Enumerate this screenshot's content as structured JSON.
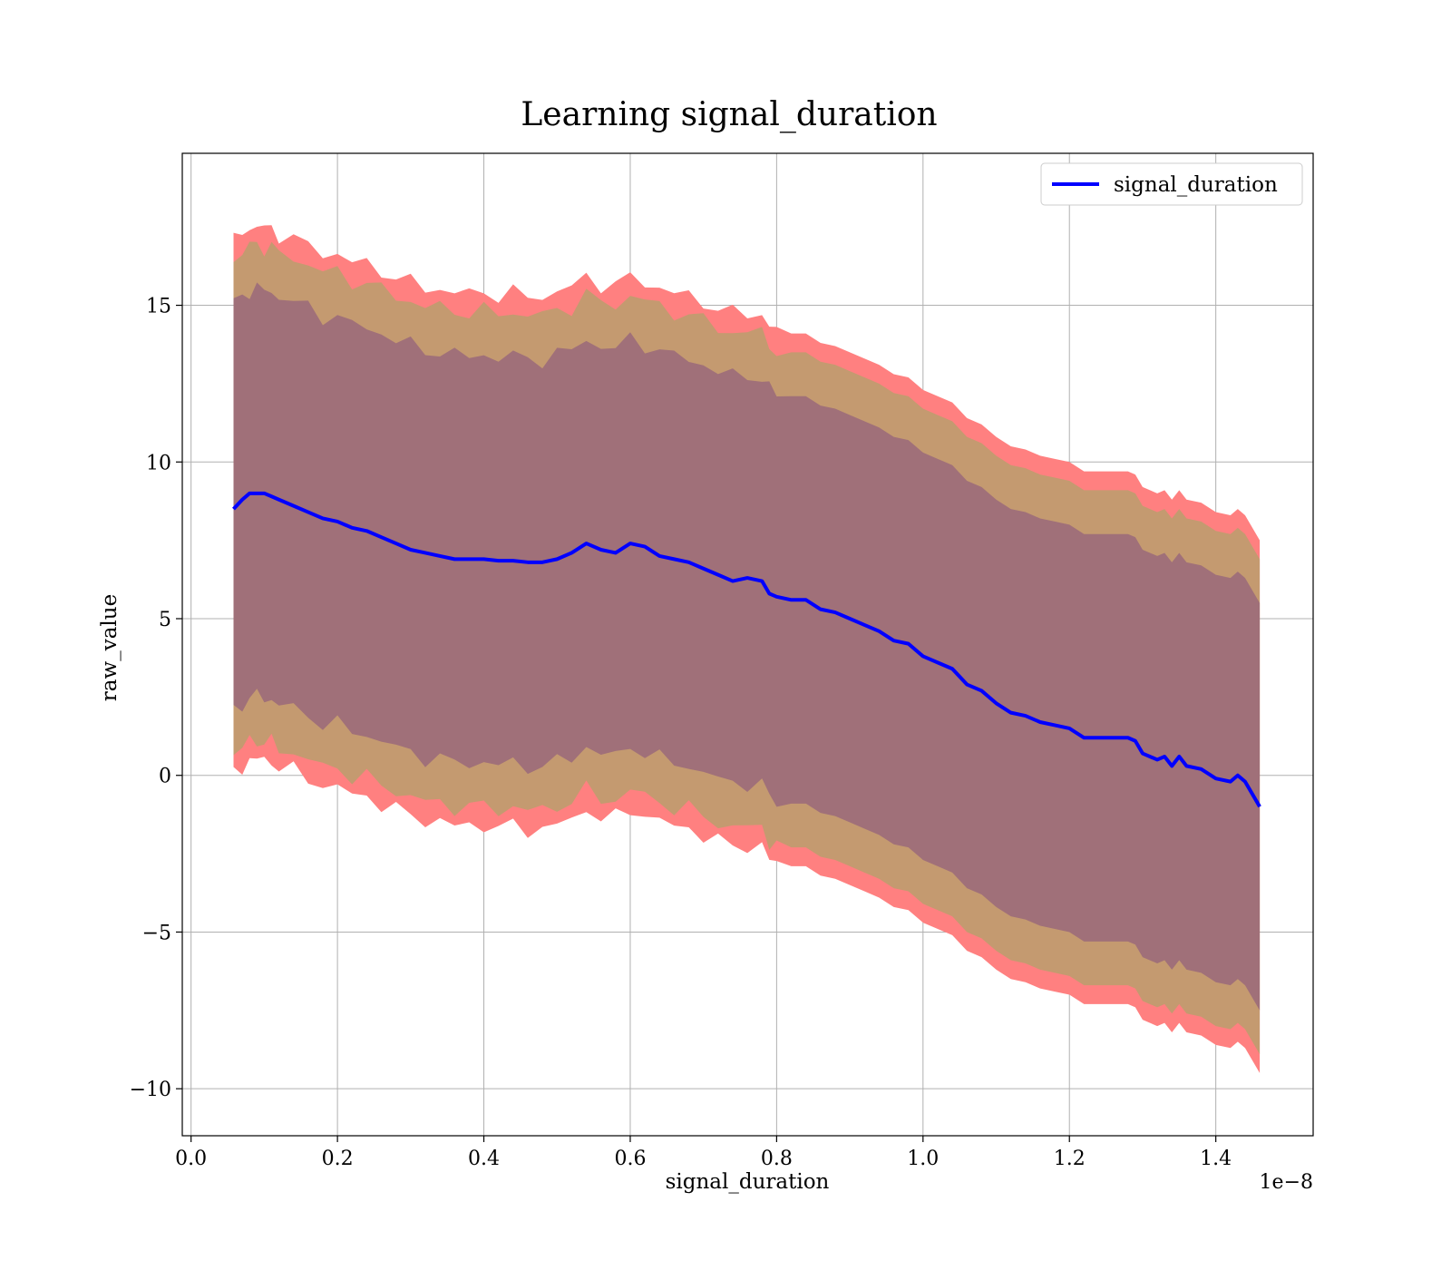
{
  "chart_data": {
    "type": "area",
    "title": "Learning signal_duration",
    "xlabel": "signal_duration",
    "ylabel": "raw_value",
    "x_offset_label": "1e−8",
    "xlim": [
      -0.012,
      1.533
    ],
    "ylim": [
      -11.5,
      19.85
    ],
    "x_ticks": [
      0.0,
      0.2,
      0.4,
      0.6,
      0.8,
      1.0,
      1.2,
      1.4
    ],
    "x_tick_labels": [
      "0.0",
      "0.2",
      "0.4",
      "0.6",
      "0.8",
      "1.0",
      "1.2",
      "1.4"
    ],
    "y_ticks": [
      -10,
      -5,
      0,
      5,
      10,
      15
    ],
    "y_tick_labels": [
      "−10",
      "−5",
      "0",
      "5",
      "10",
      "15"
    ],
    "grid": true,
    "legend_position": "top-right",
    "colors": {
      "line": "#0000ff",
      "band_outer": "#ff8080",
      "band_middle": "#c49a70",
      "band_inner": "#a07079"
    },
    "series": [
      {
        "name": "signal_duration",
        "x": [
          0.058,
          0.07,
          0.08,
          0.09,
          0.1,
          0.11,
          0.12,
          0.14,
          0.16,
          0.18,
          0.2,
          0.22,
          0.24,
          0.26,
          0.28,
          0.3,
          0.32,
          0.34,
          0.36,
          0.38,
          0.4,
          0.42,
          0.44,
          0.46,
          0.48,
          0.5,
          0.52,
          0.54,
          0.56,
          0.58,
          0.6,
          0.62,
          0.64,
          0.66,
          0.68,
          0.7,
          0.72,
          0.74,
          0.76,
          0.78,
          0.79,
          0.8,
          0.82,
          0.84,
          0.86,
          0.88,
          0.9,
          0.92,
          0.94,
          0.96,
          0.98,
          1.0,
          1.02,
          1.04,
          1.06,
          1.08,
          1.1,
          1.12,
          1.14,
          1.16,
          1.18,
          1.2,
          1.22,
          1.24,
          1.26,
          1.28,
          1.29,
          1.3,
          1.32,
          1.33,
          1.34,
          1.35,
          1.36,
          1.38,
          1.4,
          1.42,
          1.43,
          1.44,
          1.46
        ],
        "mean": [
          8.5,
          8.8,
          9.0,
          9.0,
          9.0,
          8.9,
          8.8,
          8.6,
          8.4,
          8.2,
          8.1,
          7.9,
          7.8,
          7.6,
          7.4,
          7.2,
          7.1,
          7.0,
          6.9,
          6.9,
          6.9,
          6.85,
          6.85,
          6.8,
          6.8,
          6.9,
          7.1,
          7.4,
          7.2,
          7.1,
          7.4,
          7.3,
          7.0,
          6.9,
          6.8,
          6.6,
          6.4,
          6.2,
          6.3,
          6.2,
          5.8,
          5.7,
          5.6,
          5.6,
          5.3,
          5.2,
          5.0,
          4.8,
          4.6,
          4.3,
          4.2,
          3.8,
          3.6,
          3.4,
          2.9,
          2.7,
          2.3,
          2.0,
          1.9,
          1.7,
          1.6,
          1.5,
          1.2,
          1.2,
          1.2,
          1.2,
          1.1,
          0.7,
          0.5,
          0.6,
          0.3,
          0.6,
          0.3,
          0.2,
          -0.1,
          -0.2,
          0.0,
          -0.2,
          -1.0
        ],
        "band_half_widths_std": [
          6.5,
          7.9,
          8.5
        ]
      }
    ]
  }
}
